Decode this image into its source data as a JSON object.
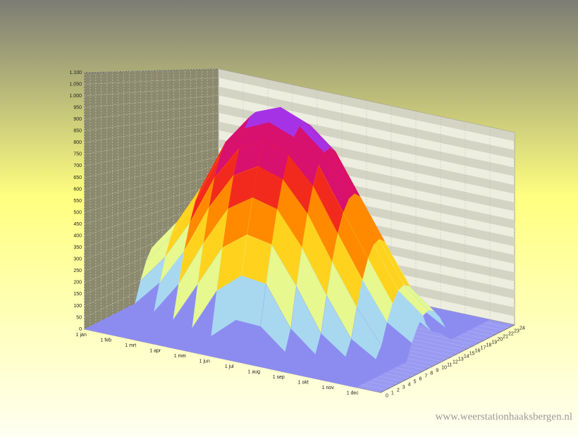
{
  "chart_data": {
    "type": "surface3d",
    "categories": [
      "1 jan",
      "1 feb",
      "1 mrt",
      "1 apr",
      "1 mei",
      "1 jun",
      "1 jul",
      "1 aug",
      "1 sep",
      "1 okt",
      "1 nov",
      "1 dec"
    ],
    "yticks": [
      0,
      1,
      2,
      3,
      4,
      5,
      6,
      7,
      8,
      9,
      10,
      11,
      12,
      13,
      14,
      15,
      16,
      17,
      18,
      19,
      20,
      21,
      22,
      23,
      24
    ],
    "ylim": [
      0,
      24
    ],
    "zlim": [
      0,
      1100
    ],
    "zticks": [
      0,
      50,
      100,
      150,
      200,
      250,
      300,
      350,
      400,
      450,
      500,
      550,
      600,
      650,
      700,
      750,
      800,
      850,
      900,
      950,
      {
        "value": 1000,
        "label": "1.000"
      },
      {
        "value": 1050,
        "label": "1.050"
      },
      {
        "value": 1100,
        "label": "1.100"
      }
    ],
    "z": [
      [
        0,
        0,
        0,
        0,
        0,
        0,
        0,
        0,
        0,
        0,
        96,
        177,
        231,
        250,
        231,
        177,
        96,
        0,
        0,
        0,
        0,
        0,
        0,
        0,
        0
      ],
      [
        0,
        0,
        0,
        0,
        0,
        0,
        0,
        0,
        0,
        124,
        235,
        324,
        380,
        400,
        380,
        324,
        235,
        124,
        0,
        0,
        0,
        0,
        0,
        0,
        0
      ],
      [
        0,
        0,
        0,
        0,
        0,
        0,
        0,
        0,
        155,
        300,
        424,
        520,
        580,
        600,
        580,
        520,
        424,
        300,
        155,
        0,
        0,
        0,
        0,
        0,
        0
      ],
      [
        0,
        0,
        0,
        0,
        0,
        0,
        0,
        190,
        369,
        530,
        665,
        766,
        829,
        850,
        829,
        766,
        665,
        530,
        369,
        190,
        0,
        0,
        0,
        0,
        0
      ],
      [
        0,
        0,
        0,
        0,
        0,
        0,
        195,
        383,
        556,
        707,
        831,
        924,
        981,
        1000,
        981,
        924,
        831,
        707,
        556,
        383,
        195,
        0,
        0,
        0,
        0
      ],
      [
        0,
        0,
        0,
        0,
        0,
        97,
        288,
        468,
        633,
        776,
        893,
        979,
        1032,
        1050,
        1032,
        979,
        893,
        776,
        633,
        468,
        288,
        97,
        0,
        0,
        0
      ],
      [
        0,
        0,
        0,
        0,
        0,
        92,
        274,
        446,
        603,
        739,
        850,
        932,
        983,
        1000,
        983,
        932,
        850,
        739,
        603,
        446,
        274,
        92,
        0,
        0,
        0
      ],
      [
        0,
        0,
        0,
        0,
        0,
        0,
        94,
        278,
        450,
        602,
        728,
        823,
        880,
        900,
        880,
        823,
        728,
        602,
        450,
        278,
        94,
        0,
        0,
        0,
        0
      ],
      [
        0,
        0,
        0,
        0,
        0,
        0,
        0,
        84,
        249,
        398,
        524,
        620,
        680,
        700,
        680,
        620,
        524,
        398,
        249,
        84,
        0,
        0,
        0,
        0,
        0
      ],
      [
        0,
        0,
        0,
        0,
        0,
        0,
        0,
        0,
        71,
        208,
        328,
        421,
        480,
        500,
        480,
        421,
        328,
        208,
        71,
        0,
        0,
        0,
        0,
        0,
        0
      ],
      [
        0,
        0,
        0,
        0,
        0,
        0,
        0,
        0,
        0,
        52,
        150,
        230,
        282,
        300,
        282,
        230,
        150,
        52,
        0,
        0,
        0,
        0,
        0,
        0,
        0
      ],
      [
        0,
        0,
        0,
        0,
        0,
        0,
        0,
        0,
        0,
        0,
        77,
        141,
        185,
        200,
        185,
        141,
        77,
        0,
        0,
        0,
        0,
        0,
        0,
        0,
        0
      ]
    ],
    "colorscale": [
      "#8c8cf0",
      "#a8d8f0",
      "#e6f88e",
      "#ffd21e",
      "#ff8a00",
      "#f22a1e",
      "#d8106e",
      "#a632e6"
    ],
    "watermark": "www.weerstationhaaksbergen.nl"
  }
}
